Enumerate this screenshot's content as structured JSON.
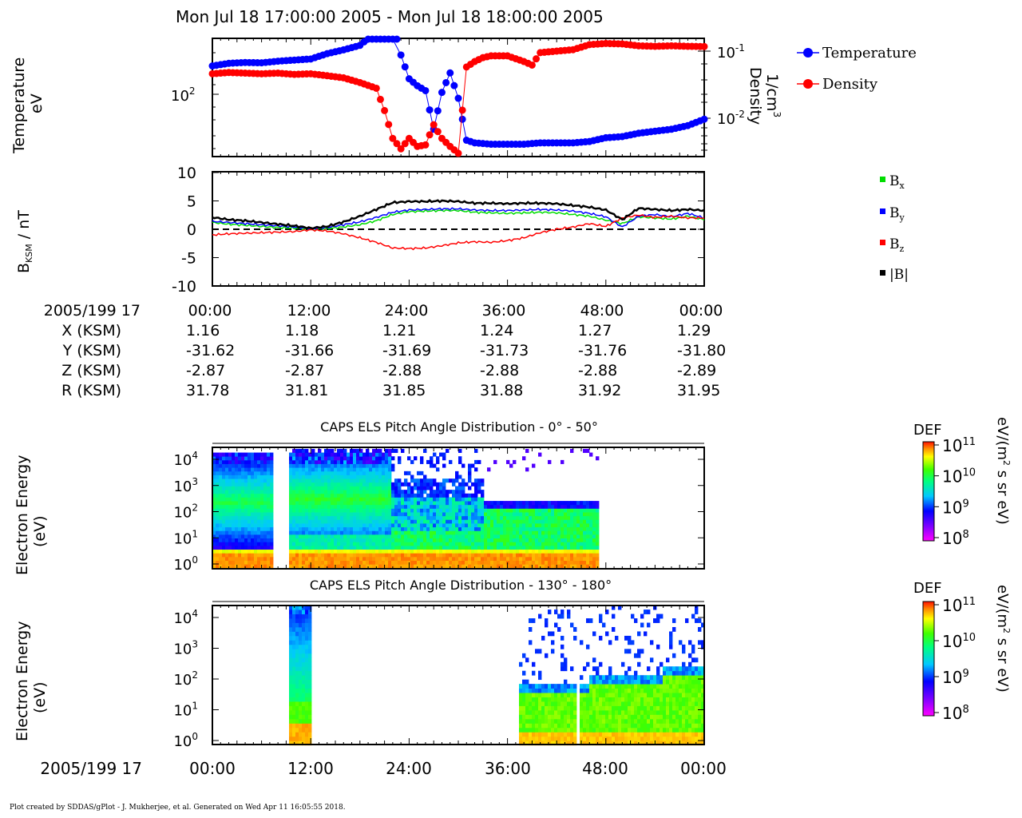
{
  "title": "Mon Jul 18 17:00:00 2005 - Mon Jul 18 18:00:00 2005",
  "footer": "Plot created by SDDAS/gPlot - J. Mukherjee, et al.  Generated on Wed Apr 11 16:05:55 2018.",
  "colors": {
    "temperature": "#0000ff",
    "density": "#ff0000",
    "bx": "#00dd00",
    "by": "#0000ff",
    "bz": "#ff0000",
    "btot": "#000000"
  },
  "panel1": {
    "left_label_line1": "Temperature",
    "left_label_line2": "eV",
    "left_tick": "10^2",
    "right_label_line1": "Density",
    "right_label_line2": "1/cm^3",
    "right_ticks": [
      "10^-1",
      "10^-2"
    ],
    "legend": [
      "Temperature",
      "Density"
    ]
  },
  "panel2": {
    "ylabel_main": "B",
    "ylabel_sub": "KSM",
    "ylabel_rest": " / nT",
    "yticks": [
      "10",
      "5",
      "0",
      "-5",
      "-10"
    ],
    "legend": [
      {
        "base": "B",
        "sub": "x"
      },
      {
        "base": "B",
        "sub": "y"
      },
      {
        "base": "B",
        "sub": "z"
      },
      {
        "base": "|B|",
        "sub": ""
      }
    ]
  },
  "ephemeris": {
    "header": "2005/199 17",
    "times": [
      "00:00",
      "12:00",
      "24:00",
      "36:00",
      "48:00",
      "00:00"
    ],
    "rows": [
      {
        "label": "X (KSM)",
        "values": [
          "1.16",
          "1.18",
          "1.21",
          "1.24",
          "1.27",
          "1.29"
        ]
      },
      {
        "label": "Y (KSM)",
        "values": [
          "-31.62",
          "-31.66",
          "-31.69",
          "-31.73",
          "-31.76",
          "-31.80"
        ]
      },
      {
        "label": "Z (KSM)",
        "values": [
          "-2.87",
          "-2.87",
          "-2.88",
          "-2.88",
          "-2.88",
          "-2.89"
        ]
      },
      {
        "label": "R (KSM)",
        "values": [
          "31.78",
          "31.81",
          "31.85",
          "31.88",
          "31.92",
          "31.95"
        ]
      }
    ]
  },
  "spec1": {
    "title": "CAPS ELS Pitch Angle Distribution - 0° - 50°",
    "ylabel_line1": "Electron Energy",
    "ylabel_line2": "(eV)",
    "yticks": [
      "10^4",
      "10^3",
      "10^2",
      "10^1",
      "10^0"
    ],
    "cbar_title": "DEF",
    "cbar_ticks": [
      "10^11",
      "10^10",
      "10^9",
      "10^8"
    ],
    "cbar_unit": "eV/(m² s sr eV)"
  },
  "spec2": {
    "title": "CAPS ELS Pitch Angle Distribution - 130° - 180°",
    "ylabel_line1": "Electron Energy",
    "ylabel_line2": "(eV)",
    "yticks": [
      "10^4",
      "10^3",
      "10^2",
      "10^1",
      "10^0"
    ],
    "cbar_title": "DEF",
    "cbar_ticks": [
      "10^11",
      "10^10",
      "10^9",
      "10^8"
    ],
    "cbar_unit": "eV/(m² s sr eV)"
  },
  "bottom_axis": {
    "header": "2005/199 17",
    "times": [
      "00:00",
      "12:00",
      "24:00",
      "36:00",
      "48:00",
      "00:00"
    ]
  },
  "chart_data": [
    {
      "type": "line",
      "title": "Mon Jul 18 17:00:00 2005 - Mon Jul 18 18:00:00 2005",
      "x_unit": "minutes after 17:00",
      "series": [
        {
          "name": "Temperature",
          "y_unit": "eV",
          "x": [
            0,
            2,
            4,
            6,
            8,
            10,
            12,
            14,
            16,
            18,
            20,
            21,
            22,
            23,
            24,
            25,
            26,
            27,
            28,
            29,
            30,
            31,
            32,
            34,
            36,
            38,
            40,
            42,
            44,
            46,
            48,
            50,
            52,
            54,
            56,
            58,
            60
          ],
          "y": [
            210,
            225,
            230,
            228,
            238,
            245,
            252,
            290,
            320,
            360,
            520,
            800,
            1100,
            280,
            150,
            125,
            110,
            40,
            105,
            175,
            90,
            30,
            28,
            27,
            27,
            27,
            28,
            28,
            28,
            29,
            32,
            33,
            36,
            38,
            40,
            44,
            52
          ]
        },
        {
          "name": "Density",
          "y_unit": "1/cm^3",
          "x": [
            0,
            2,
            4,
            6,
            8,
            10,
            12,
            14,
            16,
            18,
            20,
            21,
            22,
            23,
            24,
            25,
            26,
            27,
            28,
            29,
            30,
            31,
            32,
            33,
            34,
            36,
            38,
            39,
            40,
            42,
            44,
            46,
            48,
            50,
            52,
            54,
            56,
            58,
            60
          ],
          "y": [
            0.046,
            0.048,
            0.047,
            0.046,
            0.047,
            0.045,
            0.046,
            0.043,
            0.04,
            0.034,
            0.028,
            0.013,
            0.005,
            0.0035,
            0.005,
            0.0038,
            0.004,
            0.008,
            0.005,
            0.0038,
            0.003,
            0.058,
            0.07,
            0.08,
            0.085,
            0.085,
            0.07,
            0.062,
            0.095,
            0.1,
            0.105,
            0.125,
            0.13,
            0.128,
            0.12,
            0.118,
            0.12,
            0.118,
            0.117
          ]
        }
      ]
    },
    {
      "type": "line",
      "ylabel": "B KSM / nT",
      "ylim": [
        -10,
        10
      ],
      "x_unit": "minutes after 17:00",
      "x": [
        0,
        2,
        4,
        6,
        8,
        10,
        12,
        14,
        16,
        18,
        20,
        22,
        24,
        26,
        28,
        30,
        32,
        34,
        36,
        38,
        40,
        42,
        44,
        46,
        48,
        50,
        52,
        54,
        56,
        58,
        60
      ],
      "series": [
        {
          "name": "Bx",
          "values": [
            1.2,
            0.9,
            0.7,
            0.5,
            0.3,
            0.2,
            0.0,
            0.1,
            0.4,
            0.8,
            1.5,
            2.6,
            3.1,
            3.2,
            3.3,
            3.3,
            3.0,
            2.9,
            2.8,
            2.9,
            3.0,
            2.9,
            2.6,
            2.3,
            1.6,
            1.0,
            2.2,
            2.0,
            1.8,
            2.3,
            1.7
          ]
        },
        {
          "name": "By",
          "values": [
            1.4,
            1.2,
            1.0,
            0.8,
            0.6,
            0.4,
            0.1,
            0.3,
            0.8,
            1.3,
            2.1,
            3.0,
            3.4,
            3.5,
            3.6,
            3.6,
            3.4,
            3.3,
            3.3,
            3.4,
            3.5,
            3.4,
            3.2,
            2.8,
            2.2,
            0.4,
            2.3,
            2.6,
            2.2,
            2.8,
            2.0
          ]
        },
        {
          "name": "Bz",
          "values": [
            -1.0,
            -0.8,
            -0.7,
            -0.6,
            -0.5,
            -0.4,
            -0.1,
            -0.3,
            -0.8,
            -1.5,
            -2.3,
            -3.3,
            -3.4,
            -3.3,
            -2.9,
            -2.4,
            -2.2,
            -2.3,
            -2.0,
            -1.5,
            -0.6,
            0.0,
            0.4,
            1.0,
            0.5,
            2.0,
            2.5,
            2.1,
            2.3,
            2.0,
            2.0
          ]
        },
        {
          "name": "|B|",
          "values": [
            2.1,
            1.7,
            1.5,
            1.2,
            0.9,
            0.6,
            0.2,
            0.5,
            1.3,
            2.3,
            3.5,
            4.7,
            4.9,
            4.9,
            5.0,
            4.9,
            4.6,
            4.6,
            4.5,
            4.6,
            4.6,
            4.5,
            4.2,
            3.9,
            3.4,
            1.7,
            3.7,
            3.5,
            3.3,
            3.5,
            3.3
          ]
        }
      ]
    },
    {
      "type": "heatmap",
      "title": "CAPS ELS Pitch Angle Distribution - 0° - 50°",
      "ylabel": "Electron Energy (eV)",
      "colorbar": "DEF eV/(m² s sr eV)",
      "clim": [
        100000000.0,
        100000000000.0
      ]
    },
    {
      "type": "heatmap",
      "title": "CAPS ELS Pitch Angle Distribution - 130° - 180°",
      "ylabel": "Electron Energy (eV)",
      "colorbar": "DEF eV/(m² s sr eV)",
      "clim": [
        100000000.0,
        100000000000.0
      ]
    }
  ]
}
